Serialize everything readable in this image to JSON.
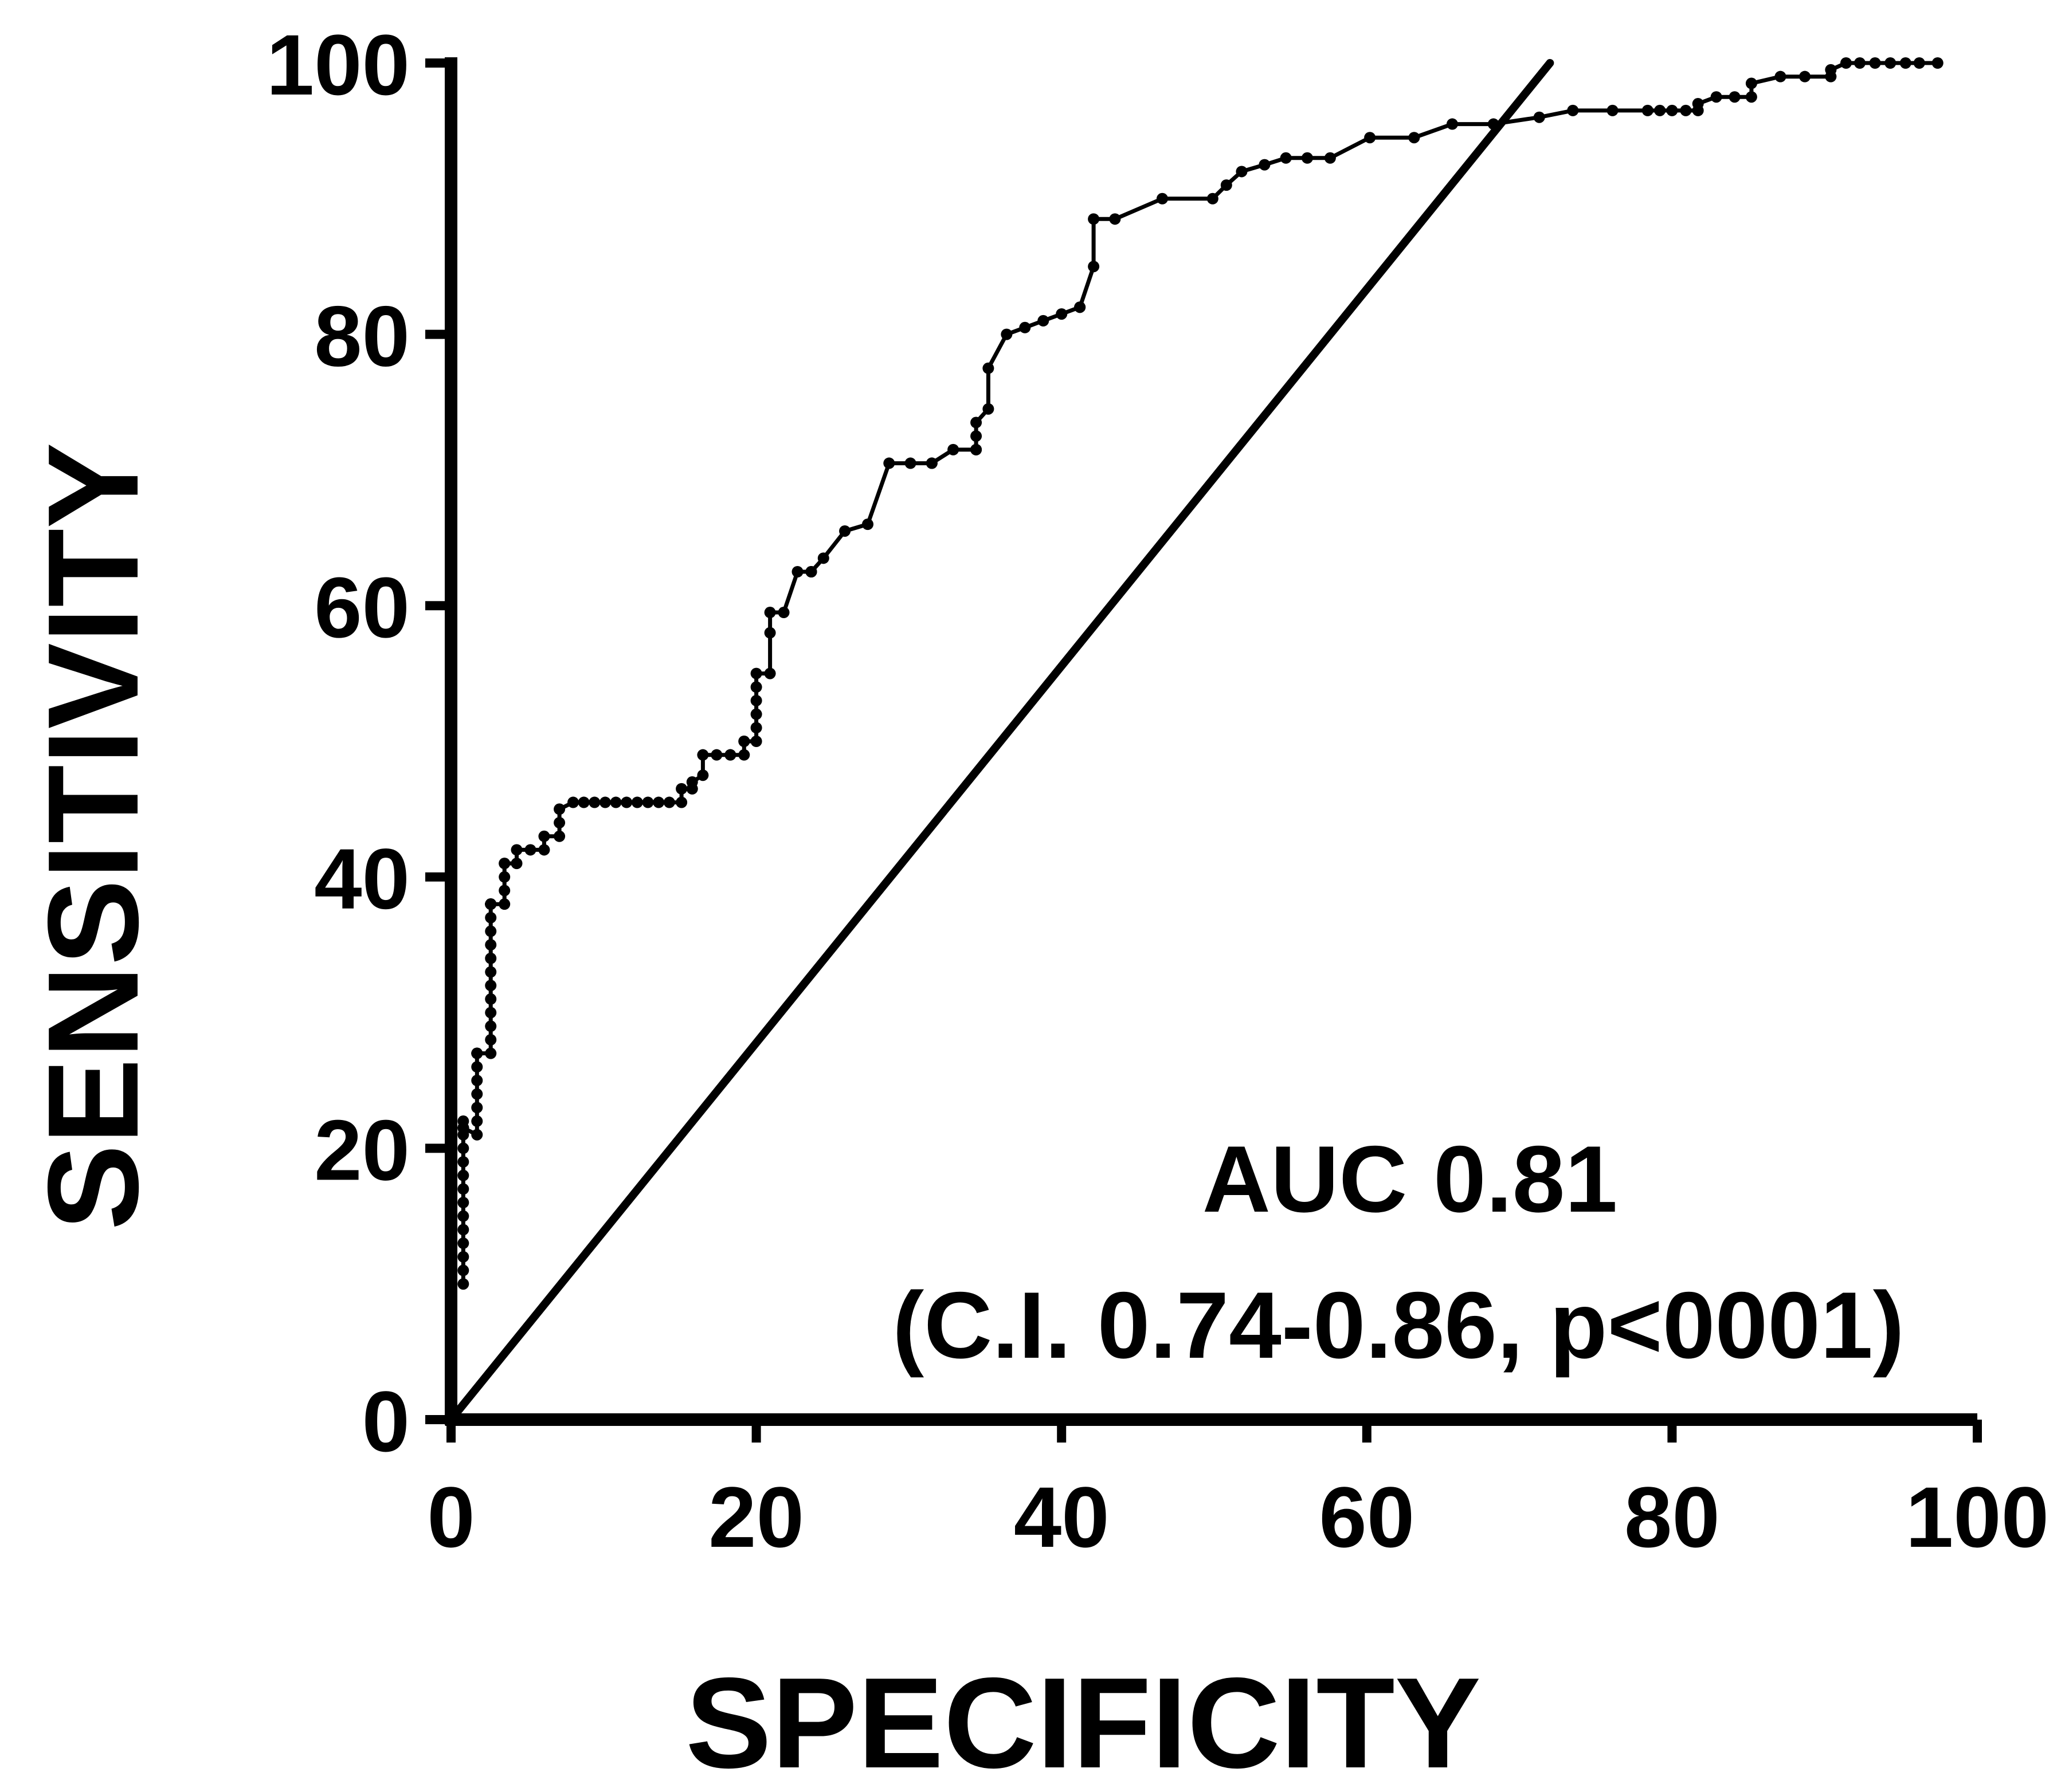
{
  "chart_data": {
    "type": "line",
    "xlabel": "SPECIFICITY",
    "ylabel": "SENSITIVITY",
    "xlim": [
      0,
      100
    ],
    "ylim": [
      0,
      100
    ],
    "xticks": [
      "0",
      "20",
      "40",
      "60",
      "80",
      "100"
    ],
    "yticks": [
      "0",
      "20",
      "40",
      "60",
      "80",
      "100"
    ],
    "grid": false,
    "annotation": [
      "AUC 0.81",
      "(C.I. 0.74-0.86, p<0001)"
    ],
    "colors": {
      "axis": "#000000",
      "series": "#000000"
    },
    "reference_line": {
      "x": [
        0,
        72
      ],
      "y": [
        0,
        100
      ]
    },
    "series": [
      {
        "x": [
          0.8,
          0.8,
          0.8,
          0.8,
          0.8,
          0.8,
          0.8,
          0.8,
          0.8,
          0.8,
          0.8,
          0.8,
          0.8,
          0.8,
          0.8,
          0.8,
          0.8,
          0.8,
          0.8,
          1.7,
          1.7,
          1.7,
          1.7,
          1.7,
          1.7,
          1.7,
          1.7,
          1.7,
          2.6,
          2.6,
          2.6,
          2.6,
          2.6,
          2.6,
          2.6,
          2.6,
          2.6,
          2.6,
          2.6,
          2.6,
          2.6,
          2.6,
          2.6,
          2.6,
          2.6,
          2.6,
          2.6,
          3.5,
          3.5,
          3.5,
          3.5,
          3.5,
          4.3,
          4.3,
          5.2,
          6.1,
          6.1,
          7.1,
          7.1,
          7.1,
          8,
          8.7,
          9.4,
          10.1,
          10.8,
          11.5,
          12.2,
          12.9,
          13.6,
          14.3,
          15.1,
          15.1,
          15.8,
          15.8,
          16.5,
          16.5,
          17.4,
          18.3,
          18.3,
          19.2,
          19.2,
          19.2,
          20,
          20,
          20,
          20,
          20,
          20,
          20.9,
          20.9,
          20.9,
          21.8,
          22.7,
          23.6,
          23.6,
          23.6,
          24.4,
          25.8,
          27.3,
          28.7,
          30.1,
          31.5,
          31.5,
          32.9,
          34.4,
          34.4,
          34.4,
          34.4,
          35.2,
          35.2,
          36.4,
          37.6,
          38.8,
          40,
          41.2,
          41.2,
          42.1,
          42.1,
          43.5,
          46.6,
          49.9,
          50.8,
          51.8,
          53.3,
          54.7,
          56.1,
          57.6,
          60.2,
          63.1,
          65.6,
          68.3,
          71.3,
          73.5,
          76.1,
          78.4,
          79.2,
          80,
          80.9,
          81.7,
          81.7,
          82.9,
          84.1,
          85.2,
          85.2,
          87.1,
          88.7,
          90.4,
          90.4,
          91.4,
          92.3,
          93.3,
          94.3,
          95.3,
          96.2,
          97.4
        ],
        "y": [
          10,
          11,
          12,
          13,
          14,
          15,
          16,
          17,
          18,
          19,
          20,
          21,
          22,
          21.5,
          21.5,
          21.5,
          21.5,
          21.5,
          21.5,
          21,
          22,
          23,
          24,
          25,
          26,
          27,
          27,
          27,
          27,
          28,
          29,
          30,
          31,
          32,
          33,
          34,
          35,
          36,
          37,
          38,
          38,
          38,
          38,
          38,
          38,
          38,
          38,
          38,
          39,
          40,
          41,
          41,
          41,
          42,
          42,
          42,
          43,
          43,
          44,
          45,
          45.5,
          45.5,
          45.5,
          45.5,
          45.5,
          45.5,
          45.5,
          45.5,
          45.5,
          45.5,
          45.5,
          46.5,
          46.5,
          47,
          47.5,
          49,
          49,
          49,
          49,
          49,
          50,
          50,
          50,
          51,
          52,
          53,
          54,
          55,
          55,
          58,
          59.5,
          59.5,
          62.5,
          62.5,
          62.5,
          62.5,
          63.5,
          65.5,
          66,
          70.5,
          70.5,
          70.5,
          70.5,
          71.5,
          71.5,
          71.5,
          72.5,
          73.5,
          74.5,
          77.5,
          80,
          80.5,
          81,
          81.5,
          82,
          82,
          85,
          88.5,
          88.5,
          90,
          90,
          91,
          92,
          92.5,
          93,
          93,
          93,
          94.5,
          94.5,
          95.5,
          95.5,
          96,
          96.5,
          96.5,
          96.5,
          96.5,
          96.5,
          96.5,
          96.5,
          97,
          97.5,
          97.5,
          97.5,
          98.5,
          99,
          99,
          99,
          99.5,
          100,
          100,
          100,
          100,
          100,
          100,
          100
        ]
      }
    ]
  }
}
